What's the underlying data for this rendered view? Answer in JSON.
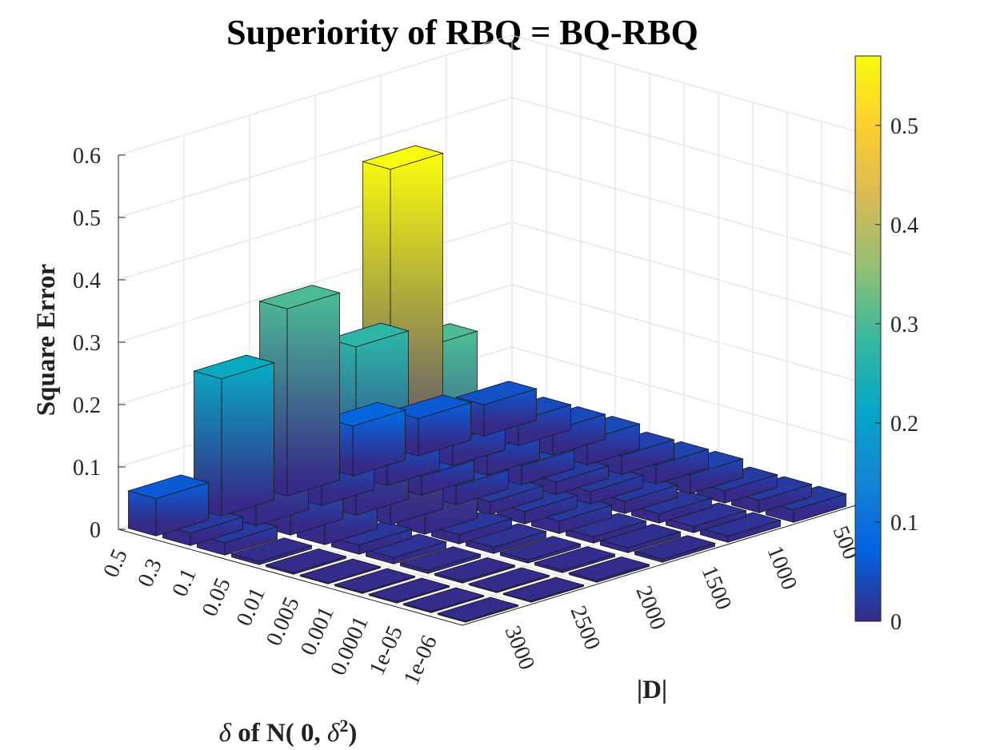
{
  "chart_data": {
    "type": "bar3d",
    "title": "Superiority of RBQ = BQ-RBQ",
    "zlabel": "Square Error",
    "xlabel": "|D|",
    "ylabel_parts": [
      "δ",
      " of N( 0, ",
      "δ",
      "2",
      ")"
    ],
    "d_values": [
      "500",
      "1000",
      "1500",
      "2000",
      "2500",
      "3000"
    ],
    "delta_values": [
      "0.5",
      "0.3",
      "0.1",
      "0.05",
      "0.01",
      "0.005",
      "0.001",
      "0.0001",
      "1e-05",
      "1e-06"
    ],
    "zlim": [
      0,
      0.6
    ],
    "zticks": [
      "0",
      "0.1",
      "0.2",
      "0.3",
      "0.4",
      "0.5",
      "0.6"
    ],
    "colorbar": {
      "limits": [
        0,
        0.57
      ],
      "ticks": [
        "0",
        "0.1",
        "0.2",
        "0.3",
        "0.4",
        "0.5"
      ],
      "colormap": "parula"
    },
    "grid": true,
    "values_by_delta": [
      {
        "delta": "0.5",
        "errors": [
          0.05,
          0.06,
          0.08,
          0.3,
          0.22,
          0.06
        ]
      },
      {
        "delta": "0.3",
        "errors": [
          0.04,
          0.04,
          0.05,
          0.09,
          0.23,
          0.02
        ]
      },
      {
        "delta": "0.1",
        "errors": [
          0.04,
          0.04,
          0.03,
          0.27,
          0.11,
          0.02
        ]
      },
      {
        "delta": "0.05",
        "errors": [
          0.04,
          0.03,
          0.03,
          0.57,
          0.12,
          0.005
        ]
      },
      {
        "delta": "0.01",
        "errors": [
          0.03,
          0.02,
          0.02,
          0.3,
          0.015,
          0.003
        ]
      },
      {
        "delta": "0.005",
        "errors": [
          0.03,
          0.02,
          0.02,
          0.015,
          0.01,
          0.002
        ]
      },
      {
        "delta": "0.001",
        "errors": [
          0.03,
          0.02,
          0.02,
          0.01,
          0.005,
          0.002
        ]
      },
      {
        "delta": "0.0001",
        "errors": [
          0.02,
          0.015,
          0.01,
          0.005,
          0.003,
          0.002
        ]
      },
      {
        "delta": "1e-05",
        "errors": [
          0.02,
          0.01,
          0.008,
          0.004,
          0.002,
          0.002
        ]
      },
      {
        "delta": "1e-06",
        "errors": [
          0.02,
          0.01,
          0.005,
          0.003,
          0.002,
          0.002
        ]
      }
    ]
  }
}
